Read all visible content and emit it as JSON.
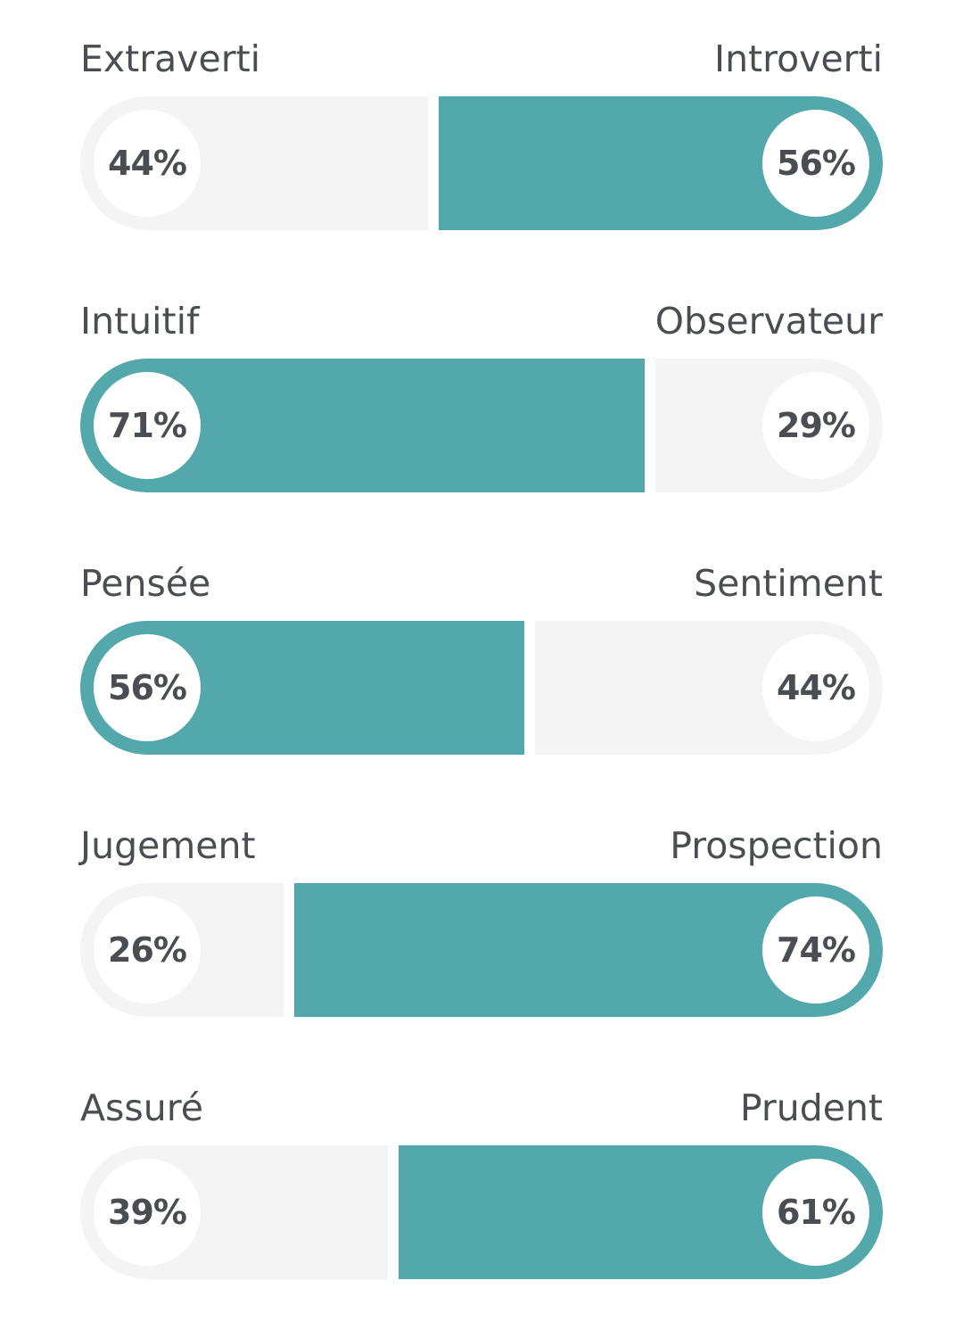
{
  "colors": {
    "accent": "#52a8aa",
    "track": "#f4f4f4",
    "text": "#4a4d52",
    "bubble": "#ffffff"
  },
  "chart_data": {
    "type": "bar",
    "orientation": "horizontal-diverging",
    "traits": [
      {
        "left_label": "Extraverti",
        "right_label": "Introverti",
        "left_value": 44,
        "right_value": 56,
        "left_text": "44%",
        "right_text": "56%",
        "dominant": "right"
      },
      {
        "left_label": "Intuitif",
        "right_label": "Observateur",
        "left_value": 71,
        "right_value": 29,
        "left_text": "71%",
        "right_text": "29%",
        "dominant": "left"
      },
      {
        "left_label": "Pensée",
        "right_label": "Sentiment",
        "left_value": 56,
        "right_value": 44,
        "left_text": "56%",
        "right_text": "44%",
        "dominant": "left"
      },
      {
        "left_label": "Jugement",
        "right_label": "Prospection",
        "left_value": 26,
        "right_value": 74,
        "left_text": "26%",
        "right_text": "74%",
        "dominant": "right"
      },
      {
        "left_label": "Assuré",
        "right_label": "Prudent",
        "left_value": 39,
        "right_value": 61,
        "left_text": "39%",
        "right_text": "61%",
        "dominant": "right"
      }
    ]
  }
}
